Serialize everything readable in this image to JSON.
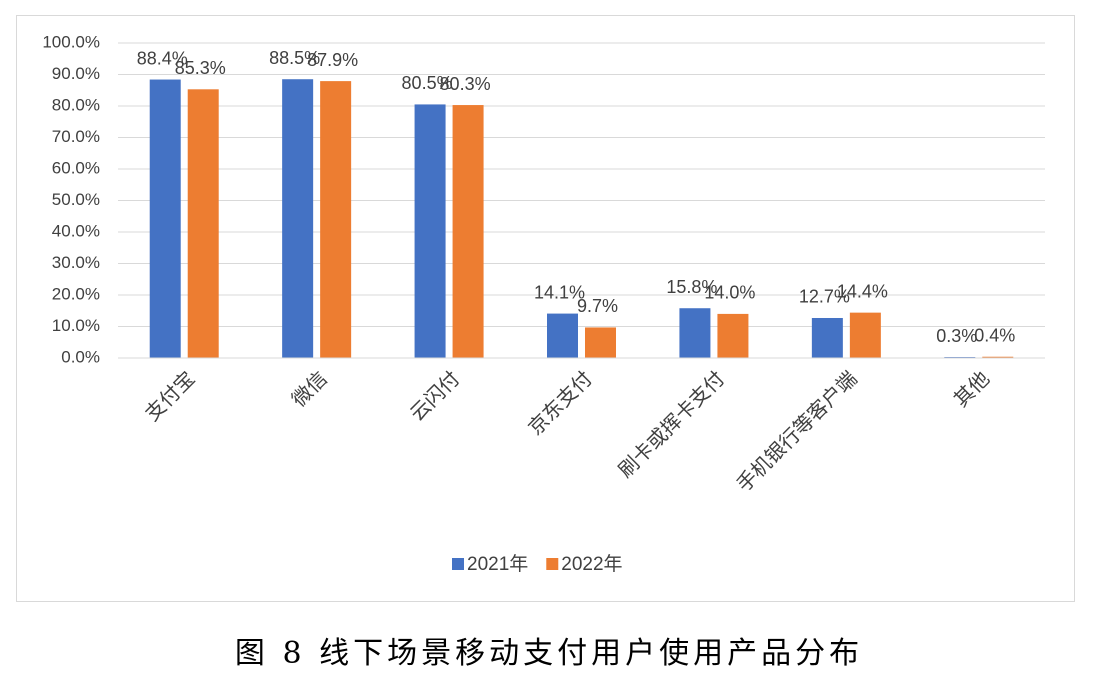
{
  "chart_data": {
    "type": "bar",
    "title": "图 8 线下场景移动支付用户使用产品分布",
    "categories": [
      "支付宝",
      "微信",
      "云闪付",
      "京东支付",
      "刷卡或挥卡支付",
      "手机银行等客户端",
      "其他"
    ],
    "series": [
      {
        "name": "2021年",
        "color": "#4472c4",
        "values": [
          88.4,
          88.5,
          80.5,
          14.1,
          15.8,
          12.7,
          0.3
        ],
        "value_labels": [
          "88.4%",
          "88.5%",
          "80.5%",
          "14.1%",
          "15.8%",
          "12.7%",
          "0.3%"
        ]
      },
      {
        "name": "2022年",
        "color": "#ed7d31",
        "values": [
          85.3,
          87.9,
          80.3,
          9.7,
          14.0,
          14.4,
          0.4
        ],
        "value_labels": [
          "85.3%",
          "87.9%",
          "80.3%",
          "9.7%",
          "14.0%",
          "14.4%",
          "0.4%"
        ]
      }
    ],
    "ylim": [
      0,
      100
    ],
    "yticks": [
      {
        "value": 0,
        "label": "0.0%"
      },
      {
        "value": 10,
        "label": "10.0%"
      },
      {
        "value": 20,
        "label": "20.0%"
      },
      {
        "value": 30,
        "label": "30.0%"
      },
      {
        "value": 40,
        "label": "40.0%"
      },
      {
        "value": 50,
        "label": "50.0%"
      },
      {
        "value": 60,
        "label": "60.0%"
      },
      {
        "value": 70,
        "label": "70.0%"
      },
      {
        "value": 80,
        "label": "80.0%"
      },
      {
        "value": 90,
        "label": "90.0%"
      },
      {
        "value": 100,
        "label": "100.0%"
      }
    ],
    "grid": true,
    "legend": "bottom"
  }
}
